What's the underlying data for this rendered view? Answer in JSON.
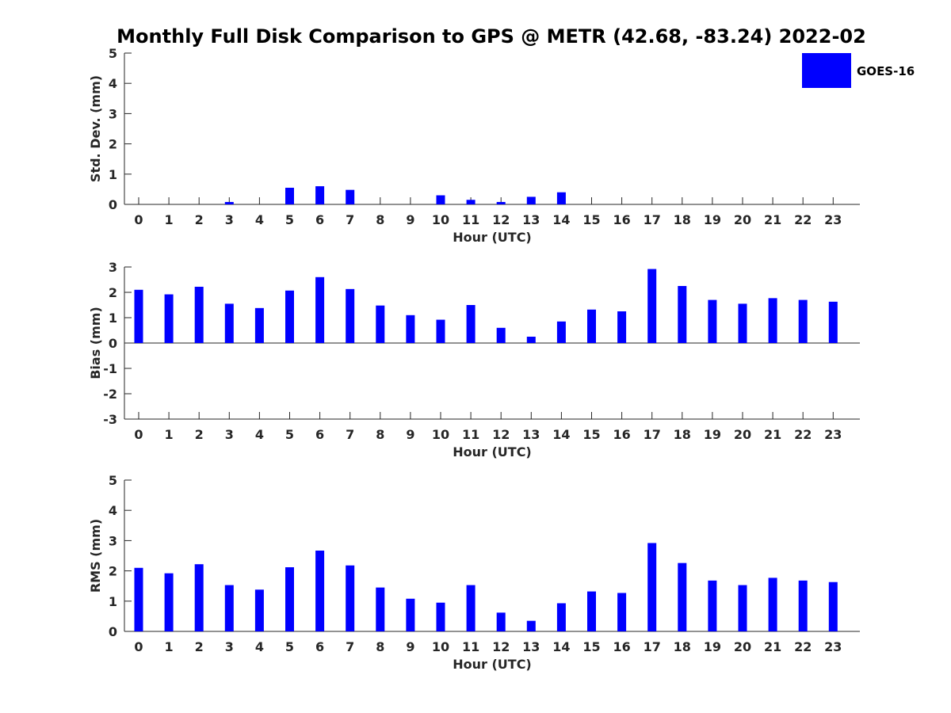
{
  "figure": {
    "title": "Monthly Full Disk Comparison to GPS @ METR (42.68, -83.24) 2022-02"
  },
  "legend": {
    "label": "GOES-16",
    "color": "#0000ff",
    "placement": "top-right"
  },
  "chart_data": [
    {
      "type": "bar",
      "xlabel": "Hour (UTC)",
      "ylabel": "Std. Dev. (mm)",
      "ylim": [
        0,
        5
      ],
      "yticks": [
        0,
        1,
        2,
        3,
        4,
        5
      ],
      "categories": [
        "0",
        "1",
        "2",
        "3",
        "4",
        "5",
        "6",
        "7",
        "8",
        "9",
        "10",
        "11",
        "12",
        "13",
        "14",
        "15",
        "16",
        "17",
        "18",
        "19",
        "20",
        "21",
        "22",
        "23"
      ],
      "series": [
        {
          "name": "GOES-16",
          "values": [
            0,
            0,
            0,
            0.08,
            0,
            0.55,
            0.6,
            0.48,
            0,
            0,
            0.3,
            0.15,
            0.08,
            0.25,
            0.4,
            0,
            0,
            0,
            0,
            0,
            0,
            0,
            0,
            0
          ]
        }
      ]
    },
    {
      "type": "bar",
      "xlabel": "Hour (UTC)",
      "ylabel": "Bias (mm)",
      "ylim": [
        -3,
        3
      ],
      "yticks": [
        -3,
        -2,
        -1,
        0,
        1,
        2,
        3
      ],
      "categories": [
        "0",
        "1",
        "2",
        "3",
        "4",
        "5",
        "6",
        "7",
        "8",
        "9",
        "10",
        "11",
        "12",
        "13",
        "14",
        "15",
        "16",
        "17",
        "18",
        "19",
        "20",
        "21",
        "22",
        "23"
      ],
      "series": [
        {
          "name": "GOES-16",
          "values": [
            2.1,
            1.92,
            2.22,
            1.55,
            1.38,
            2.07,
            2.6,
            2.13,
            1.48,
            1.1,
            0.92,
            1.5,
            0.6,
            0.25,
            0.85,
            1.32,
            1.25,
            2.92,
            2.25,
            1.7,
            1.55,
            1.77,
            1.7,
            1.63
          ]
        }
      ]
    },
    {
      "type": "bar",
      "xlabel": "Hour (UTC)",
      "ylabel": "RMS (mm)",
      "ylim": [
        0,
        5
      ],
      "yticks": [
        0,
        1,
        2,
        3,
        4,
        5
      ],
      "categories": [
        "0",
        "1",
        "2",
        "3",
        "4",
        "5",
        "6",
        "7",
        "8",
        "9",
        "10",
        "11",
        "12",
        "13",
        "14",
        "15",
        "16",
        "17",
        "18",
        "19",
        "20",
        "21",
        "22",
        "23"
      ],
      "series": [
        {
          "name": "GOES-16",
          "values": [
            2.1,
            1.92,
            2.22,
            1.53,
            1.38,
            2.12,
            2.67,
            2.18,
            1.45,
            1.08,
            0.95,
            1.53,
            0.62,
            0.35,
            0.93,
            1.32,
            1.27,
            2.92,
            2.26,
            1.68,
            1.53,
            1.77,
            1.68,
            1.63
          ]
        }
      ]
    }
  ]
}
